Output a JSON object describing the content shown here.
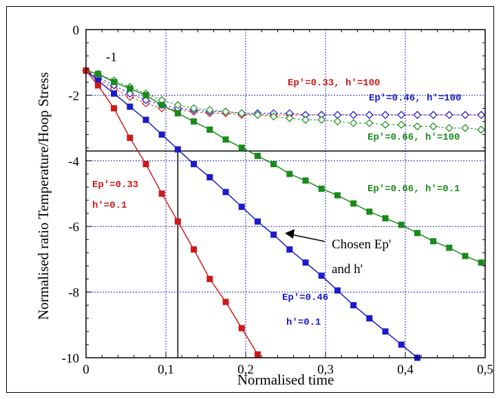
{
  "chart_data": {
    "type": "line",
    "xlabel": "Normalised time",
    "ylabel": "Normalised ratio Temperature/Hoop Stress",
    "xlim": [
      0,
      0.5
    ],
    "ylim": [
      -10,
      0
    ],
    "xticks": [
      0,
      0.1,
      0.2,
      0.3,
      0.4,
      0.5
    ],
    "xtick_labels": [
      "0",
      "0,1",
      "0,2",
      "0,3",
      "0,4",
      "0,5"
    ],
    "yticks": [
      0,
      -2,
      -4,
      -6,
      -8,
      -10
    ],
    "ytick_labels": [
      "0",
      "-2",
      "-4",
      "-6",
      "-8",
      "-10"
    ],
    "grid": true,
    "colors": {
      "red": "#cc1a1a",
      "blue": "#1a1acc",
      "green": "#1a8a1a",
      "grid": "#2222cc"
    },
    "series": [
      {
        "label": "Ep'=0.33, h'=0.1",
        "color": "#cc1a1a",
        "marker": "filled-square",
        "x": [
          0,
          0.015,
          0.035,
          0.055,
          0.075,
          0.095,
          0.115,
          0.135,
          0.155,
          0.175,
          0.195,
          0.215
        ],
        "y": [
          -1.25,
          -1.7,
          -2.4,
          -3.3,
          -4.1,
          -5.0,
          -5.85,
          -6.7,
          -7.6,
          -8.3,
          -9.1,
          -9.9
        ]
      },
      {
        "label": "Ep'=0.46, h'=0.1",
        "color": "#1a1acc",
        "marker": "filled-square",
        "x": [
          0,
          0.015,
          0.035,
          0.055,
          0.075,
          0.095,
          0.115,
          0.135,
          0.155,
          0.175,
          0.195,
          0.215,
          0.235,
          0.255,
          0.275,
          0.295,
          0.315,
          0.335,
          0.355,
          0.375,
          0.395,
          0.415
        ],
        "y": [
          -1.25,
          -1.55,
          -1.95,
          -2.35,
          -2.75,
          -3.2,
          -3.65,
          -4.1,
          -4.5,
          -4.95,
          -5.4,
          -5.85,
          -6.25,
          -6.7,
          -7.1,
          -7.5,
          -7.95,
          -8.4,
          -8.8,
          -9.2,
          -9.6,
          -10.0
        ]
      },
      {
        "label": "Ep'=0.66, h'=0.1",
        "color": "#1a8a1a",
        "marker": "filled-square",
        "x": [
          0,
          0.015,
          0.035,
          0.055,
          0.075,
          0.095,
          0.115,
          0.135,
          0.155,
          0.175,
          0.195,
          0.215,
          0.235,
          0.255,
          0.275,
          0.295,
          0.315,
          0.335,
          0.355,
          0.375,
          0.395,
          0.415,
          0.435,
          0.455,
          0.475,
          0.495
        ],
        "y": [
          -1.25,
          -1.35,
          -1.6,
          -1.8,
          -2.0,
          -2.3,
          -2.55,
          -2.8,
          -3.05,
          -3.35,
          -3.6,
          -3.85,
          -4.1,
          -4.4,
          -4.6,
          -4.85,
          -5.05,
          -5.3,
          -5.55,
          -5.75,
          -5.95,
          -6.2,
          -6.45,
          -6.65,
          -6.9,
          -7.1
        ]
      },
      {
        "label": "Ep'=0.33, h'=100",
        "color": "#cc1a1a",
        "marker": "open-diamond",
        "x": [
          0,
          0.015,
          0.035,
          0.055,
          0.075,
          0.095,
          0.115,
          0.135,
          0.155,
          0.175,
          0.195,
          0.215,
          0.235,
          0.255,
          0.275,
          0.295,
          0.315,
          0.335,
          0.355,
          0.375,
          0.395,
          0.415,
          0.435,
          0.455,
          0.475,
          0.495
        ],
        "y": [
          -1.25,
          -1.5,
          -1.8,
          -2.05,
          -2.25,
          -2.4,
          -2.45,
          -2.5,
          -2.55,
          -2.55,
          -2.6,
          -2.6,
          -2.6,
          -2.6,
          -2.6,
          -2.6,
          -2.6,
          -2.6,
          -2.6,
          -2.6,
          -2.6,
          -2.6,
          -2.6,
          -2.6,
          -2.6,
          -2.6
        ]
      },
      {
        "label": "Ep'=0.46, h'=100",
        "color": "#1a1acc",
        "marker": "open-diamond",
        "x": [
          0,
          0.015,
          0.035,
          0.055,
          0.075,
          0.095,
          0.115,
          0.135,
          0.155,
          0.175,
          0.195,
          0.215,
          0.235,
          0.255,
          0.275,
          0.295,
          0.315,
          0.335,
          0.355,
          0.375,
          0.395,
          0.415,
          0.435,
          0.455,
          0.475,
          0.495
        ],
        "y": [
          -1.25,
          -1.45,
          -1.7,
          -1.95,
          -2.15,
          -2.3,
          -2.4,
          -2.45,
          -2.5,
          -2.5,
          -2.55,
          -2.55,
          -2.55,
          -2.55,
          -2.6,
          -2.6,
          -2.6,
          -2.6,
          -2.6,
          -2.6,
          -2.6,
          -2.6,
          -2.6,
          -2.6,
          -2.6,
          -2.6
        ]
      },
      {
        "label": "Ep'=0.66, h'=100",
        "color": "#1a8a1a",
        "marker": "open-diamond",
        "x": [
          0,
          0.015,
          0.035,
          0.055,
          0.075,
          0.095,
          0.115,
          0.135,
          0.155,
          0.175,
          0.195,
          0.215,
          0.235,
          0.255,
          0.275,
          0.295,
          0.315,
          0.335,
          0.355,
          0.375,
          0.395,
          0.415,
          0.435,
          0.455,
          0.475,
          0.495
        ],
        "y": [
          -1.25,
          -1.35,
          -1.55,
          -1.75,
          -1.95,
          -2.15,
          -2.3,
          -2.4,
          -2.45,
          -2.5,
          -2.55,
          -2.6,
          -2.65,
          -2.7,
          -2.75,
          -2.75,
          -2.8,
          -2.85,
          -2.85,
          -2.9,
          -2.9,
          -2.95,
          -2.95,
          -3.0,
          -3.0,
          -3.05
        ]
      }
    ],
    "reference_lines": {
      "horizontal_y": -3.7,
      "vertical_x": 0.115
    },
    "annotations": {
      "start_value": "-1",
      "red_h100": "Ep'=0.33, h'=100",
      "blue_h100": "Ep'=0.46, h'=100",
      "green_h100": "Ep'=0.66, h'=100",
      "green_h01": "Ep'=0.66, h'=0.1",
      "red_ep": "Ep'=0.33",
      "red_h": "h'=0.1",
      "blue_ep": "Ep'=0.46",
      "blue_h": "h'=0.1",
      "chosen_line1": "Chosen Ep'",
      "chosen_line2": "and h'"
    }
  }
}
